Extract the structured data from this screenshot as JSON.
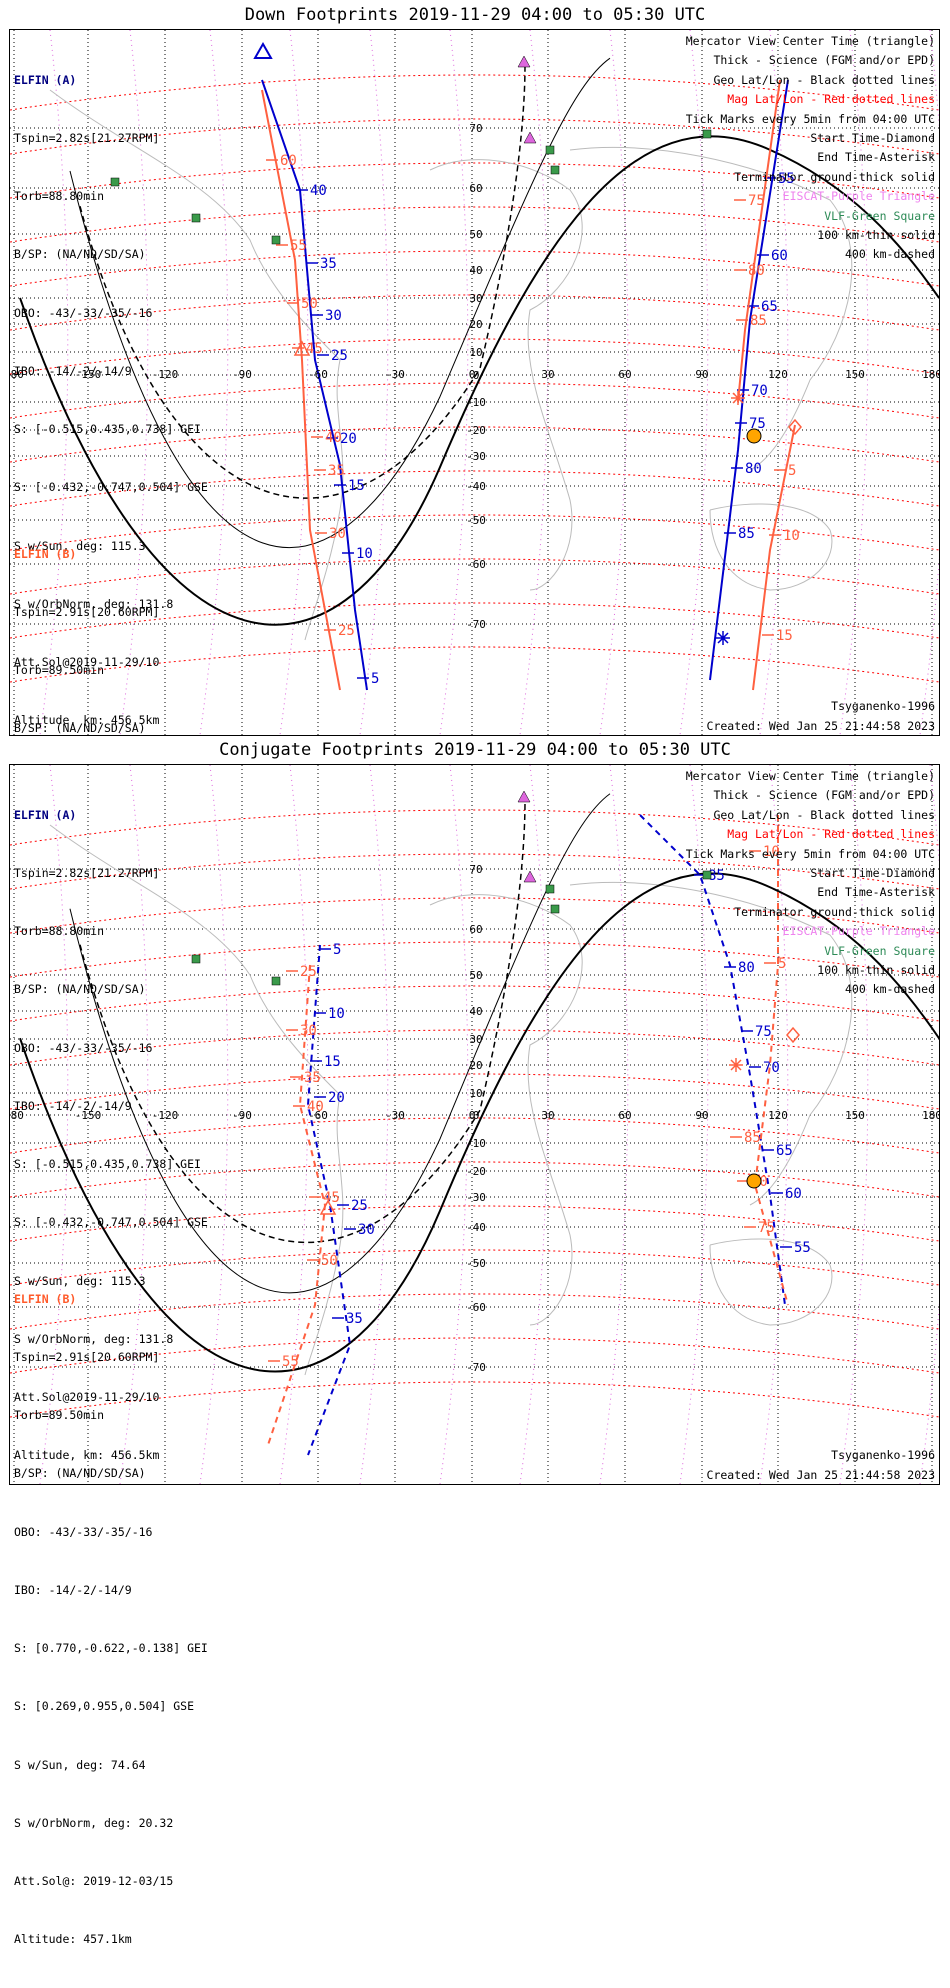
{
  "panels": [
    {
      "title": "Down Footprints 2019-11-29 04:00 to 05:30 UTC",
      "legend": [
        {
          "text": "Mercator View Center Time (triangle)",
          "color": "#000000"
        },
        {
          "text": "Thick - Science (FGM and/or EPD)",
          "color": "#000000"
        },
        {
          "text": "Geo Lat/Lon - Black dotted lines",
          "color": "#000000"
        },
        {
          "text": "Mag Lat/Lon - Red dotted lines",
          "color": "#ff0000"
        },
        {
          "text": "Tick Marks every 5min from 04:00 UTC",
          "color": "#000000"
        },
        {
          "text": "Start Time-Diamond",
          "color": "#000000"
        },
        {
          "text": "End Time-Asterisk",
          "color": "#000000"
        },
        {
          "text": "Terminator ground-thick solid",
          "color": "#000000"
        },
        {
          "text": "EISCAT-Purple Triangle",
          "color": "#ee82ee"
        },
        {
          "text": "VLF-Green Square",
          "color": "#2e8b57"
        },
        {
          "text": "100 km-thin solid",
          "color": "#000000"
        },
        {
          "text": "400 km-dashed",
          "color": "#000000"
        }
      ],
      "footer_left": "Tsyganenko-1996",
      "footer_right": "Created: Wed Jan 25 21:44:58 2023",
      "elfin_a_ticks": [
        "40",
        "35",
        "30",
        "25",
        "20",
        "15",
        "10",
        "5",
        "55",
        "60",
        "65",
        "70",
        "75",
        "80",
        "85"
      ],
      "elfin_b_ticks": [
        "60",
        "55",
        "50",
        "45",
        "40",
        "35",
        "30",
        "25",
        "75",
        "80",
        "85",
        "5",
        "10",
        "15"
      ]
    },
    {
      "title": "Conjugate Footprints 2019-11-29 04:00 to 05:30 UTC",
      "legend": [
        {
          "text": "Mercator View Center Time (triangle)",
          "color": "#000000"
        },
        {
          "text": "Thick - Science (FGM and/or EPD)",
          "color": "#000000"
        },
        {
          "text": "Geo Lat/Lon - Black dotted lines",
          "color": "#000000"
        },
        {
          "text": "Mag Lat/Lon - Red dotted lines",
          "color": "#ff0000"
        },
        {
          "text": "Tick Marks every 5min from 04:00 UTC",
          "color": "#000000"
        },
        {
          "text": "Start Time-Diamond",
          "color": "#000000"
        },
        {
          "text": "End Time-Asterisk",
          "color": "#000000"
        },
        {
          "text": "Terminator ground-thick solid",
          "color": "#000000"
        },
        {
          "text": "EISCAT-Purple Triangle",
          "color": "#ee82ee"
        },
        {
          "text": "VLF-Green Square",
          "color": "#2e8b57"
        },
        {
          "text": "100 km-thin solid",
          "color": "#000000"
        },
        {
          "text": "400 km-dashed",
          "color": "#000000"
        }
      ],
      "footer_left": "Tsyganenko-1996",
      "footer_right": "Created: Wed Jan 25 21:44:58 2023",
      "elfin_a_ticks": [
        "5",
        "10",
        "15",
        "20",
        "25",
        "30",
        "35",
        "85",
        "80",
        "75",
        "70",
        "65",
        "60",
        "55"
      ],
      "elfin_b_ticks": [
        "25",
        "30",
        "35",
        "40",
        "45",
        "50",
        "55",
        "10",
        "5",
        "85",
        "80",
        "75"
      ]
    }
  ],
  "elfin_a": {
    "name": "ELFIN (A)",
    "lines": [
      "Tspin=2.82s[21.27RPM]",
      "Torb=88.80min",
      "B/SP: (NA/ND/SD/SA)",
      "OBO: -43/-33/-35/-16",
      "IBO: -14/-2/-14/9",
      "S: [-0.515,0.435,0.738] GEI",
      "S: [-0.432,-0.747,0.504] GSE",
      "S w/Sun, deg: 115.3",
      "S w/OrbNorm, deg: 131.8",
      "Att.Sol@2019-11-29/10",
      "Altitude, km: 456.5km"
    ]
  },
  "elfin_b": {
    "name": "ELFIN (B)",
    "lines": [
      "Tspin=2.91s[20.60RPM]",
      "Torb=89.50min",
      "B/SP: (NA/ND/SD/SA)",
      "OBO: -43/-33/-35/-16",
      "IBO: -14/-2/-14/9",
      "S: [0.770,-0.622,-0.138] GEI",
      "S: [0.269,0.955,0.504] GSE",
      "S w/Sun, deg: 74.64",
      "S w/OrbNorm, deg: 20.32",
      "Att.Sol@: 2019-12-03/15",
      "Altitude: 457.1km"
    ]
  },
  "map_axes": {
    "lon_ticks": [
      "180",
      "-150",
      "-120",
      "-90",
      "-60",
      "-30",
      "0",
      "30",
      "60",
      "90",
      "120",
      "150",
      "180"
    ],
    "lat_ticks": [
      "70",
      "60",
      "50",
      "40",
      "30",
      "20",
      "10",
      "0",
      "-10",
      "-20",
      "-30",
      "-40",
      "-50",
      "-60",
      "-70"
    ]
  },
  "colors": {
    "elfin_a": "#0000cc",
    "elfin_b": "#ff6040",
    "mag_grid": "#ff0000",
    "geo_grid": "#000000",
    "eiscat": "#dd66dd",
    "vlf": "#3a9a4a",
    "sun": "#ffa500"
  }
}
